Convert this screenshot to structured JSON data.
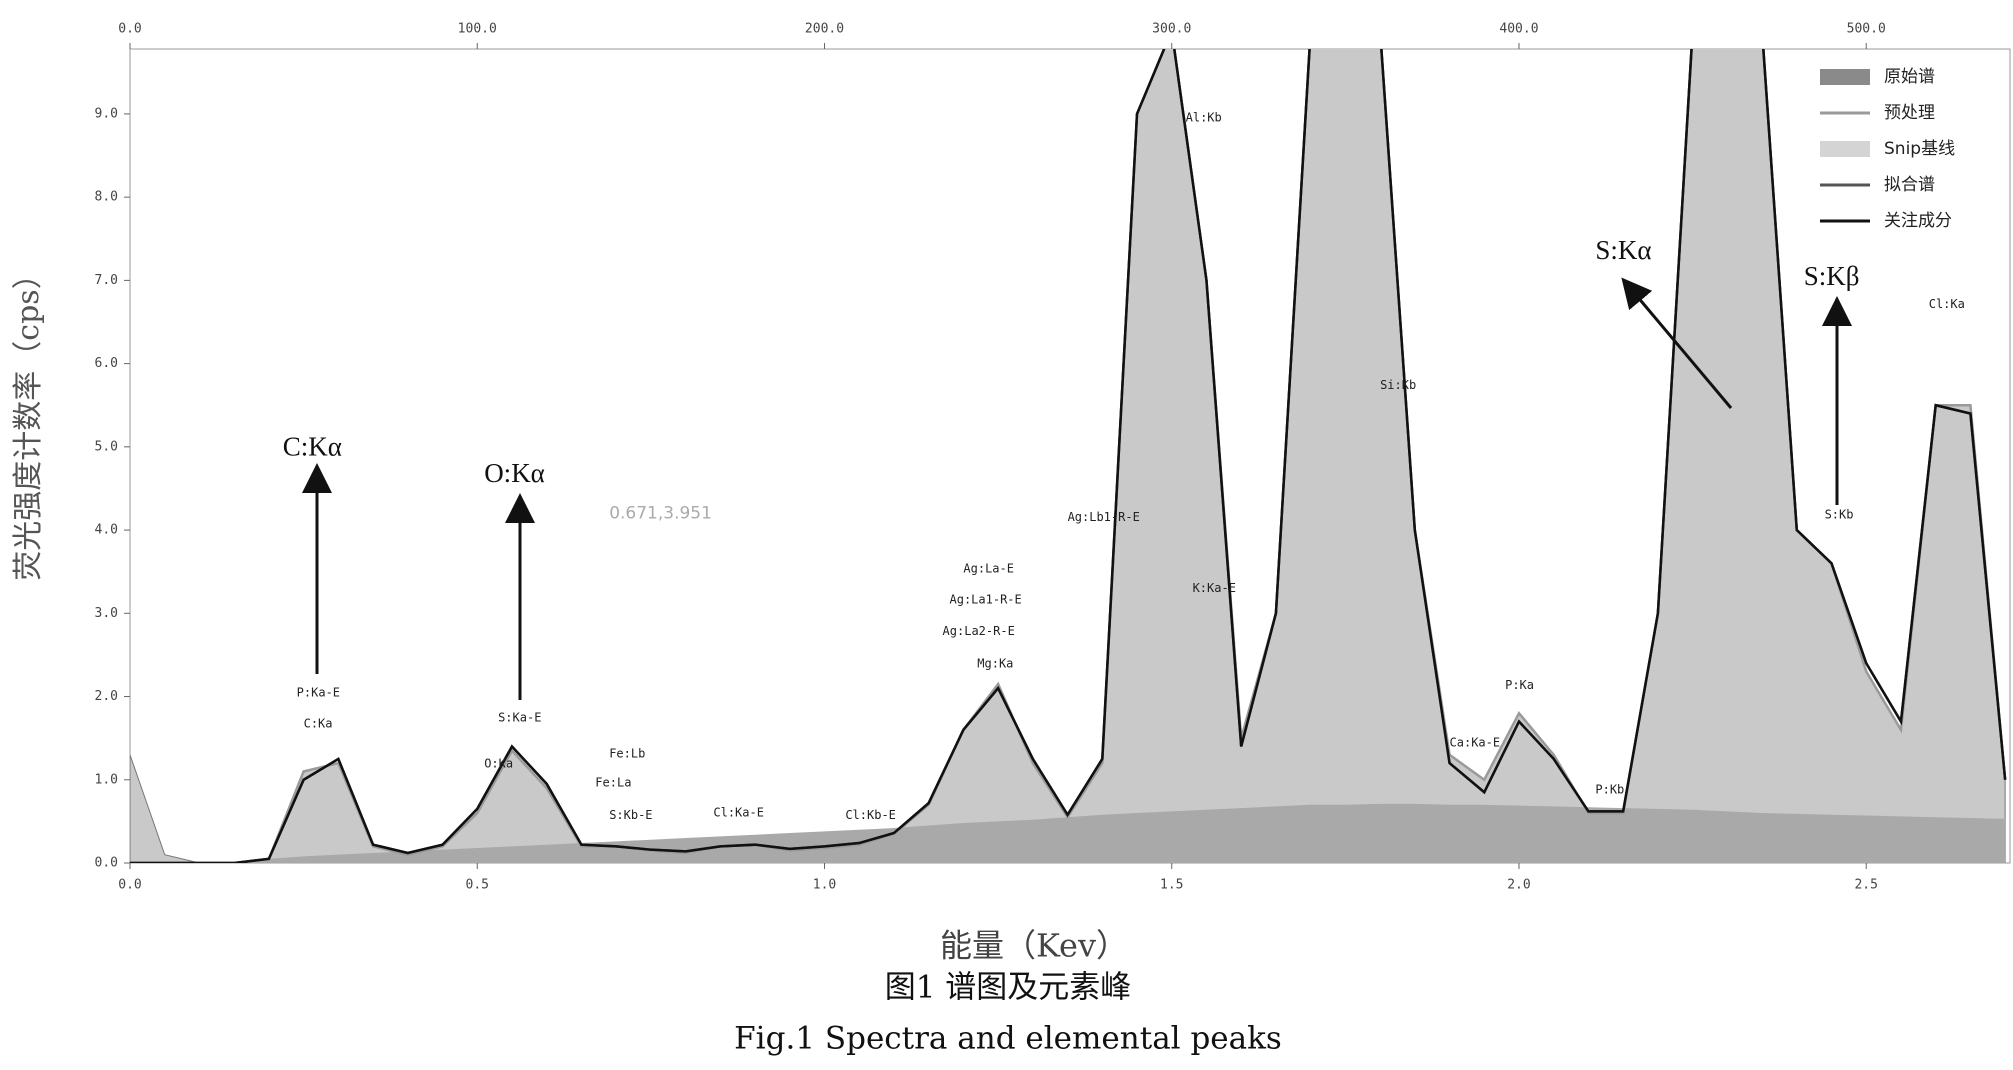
{
  "chart_data": {
    "type": "spectrum",
    "caption_cn": "图1 谱图及元素峰",
    "caption_en": "Fig.1  Spectra and elemental peaks",
    "xlabel": "能量（Kev）",
    "ylabel": "荧光强度计数率（cps）",
    "xlim": [
      0,
      2.707
    ],
    "xticks": [
      {
        "value": 0,
        "label": "0.0"
      },
      {
        "value": 0.5,
        "label": "0.5"
      },
      {
        "value": 1,
        "label": "1.0"
      },
      {
        "value": 1.5,
        "label": "1.5"
      },
      {
        "value": 2,
        "label": "2.0"
      },
      {
        "value": 2.5,
        "label": "2.5"
      }
    ],
    "x2lim": [
      0,
      541.4
    ],
    "x2ticks": [
      {
        "value": 0,
        "label": "0.0"
      },
      {
        "value": 100,
        "label": "100.0"
      },
      {
        "value": 200,
        "label": "200.0"
      },
      {
        "value": 300,
        "label": "300.0"
      },
      {
        "value": 400,
        "label": "400.0"
      },
      {
        "value": 500,
        "label": "500.0"
      }
    ],
    "ylim": [
      0,
      9.78
    ],
    "yticks": [
      {
        "value": 0,
        "label": "0.0"
      },
      {
        "value": 1,
        "label": "1.0"
      },
      {
        "value": 2,
        "label": "2.0"
      },
      {
        "value": 3,
        "label": "3.0"
      },
      {
        "value": 4,
        "label": "4.0"
      },
      {
        "value": 5,
        "label": "5.0"
      },
      {
        "value": 6,
        "label": "6.0"
      },
      {
        "value": 7,
        "label": "7.0"
      },
      {
        "value": 8,
        "label": "8.0"
      },
      {
        "value": 9,
        "label": "9.0"
      }
    ],
    "legend": "top-right",
    "x": [
      0,
      0.05,
      0.1,
      0.15,
      0.2,
      0.25,
      0.3,
      0.35,
      0.4,
      0.45,
      0.5,
      0.55,
      0.6,
      0.65,
      0.7,
      0.75,
      0.8,
      0.85,
      0.9,
      0.95,
      1.0,
      1.05,
      1.1,
      1.15,
      1.2,
      1.25,
      1.3,
      1.35,
      1.4,
      1.45,
      1.5,
      1.55,
      1.6,
      1.65,
      1.7,
      1.75,
      1.8,
      1.85,
      1.9,
      1.95,
      2.0,
      2.05,
      2.1,
      2.15,
      2.2,
      2.25,
      2.3,
      2.35,
      2.4,
      2.45,
      2.5,
      2.55,
      2.6,
      2.65,
      2.7
    ],
    "series": [
      {
        "name": "原始谱",
        "kind": "area",
        "color": "#c9c9c9",
        "legend_color": "#8a8a8a",
        "values": [
          1.3,
          0.1,
          0,
          0,
          0.05,
          1.1,
          1.2,
          0.2,
          0.1,
          0.2,
          0.6,
          1.35,
          0.9,
          0.2,
          0.2,
          0.15,
          0.12,
          0.2,
          0.22,
          0.15,
          0.18,
          0.22,
          0.35,
          0.7,
          1.6,
          2.15,
          1.2,
          0.55,
          1.2,
          9,
          10,
          7,
          1.5,
          3,
          10,
          10,
          10,
          4,
          1.3,
          1.0,
          1.8,
          1.3,
          0.6,
          0.6,
          3,
          10,
          10,
          10,
          4,
          3.6,
          2.3,
          1.6,
          5.5,
          5.5,
          1.0
        ]
      },
      {
        "name": "预处理",
        "kind": "line",
        "color": "#9a9a9a",
        "values": [
          0,
          0,
          0,
          0,
          0.05,
          1.1,
          1.2,
          0.2,
          0.1,
          0.2,
          0.6,
          1.35,
          0.9,
          0.2,
          0.2,
          0.15,
          0.12,
          0.2,
          0.22,
          0.15,
          0.18,
          0.22,
          0.35,
          0.7,
          1.6,
          2.15,
          1.2,
          0.55,
          1.2,
          9,
          10,
          7,
          1.5,
          3,
          10,
          10,
          10,
          4,
          1.3,
          1.0,
          1.8,
          1.3,
          0.6,
          0.6,
          3,
          10,
          10,
          10,
          4,
          3.6,
          2.3,
          1.6,
          5.5,
          5.5,
          1.0
        ]
      },
      {
        "name": "Snip基线",
        "kind": "area",
        "color": "#a9a9a9",
        "legend_color": "#d4d4d4",
        "values": [
          0,
          0,
          0,
          0,
          0.05,
          0.08,
          0.1,
          0.12,
          0.14,
          0.16,
          0.18,
          0.2,
          0.22,
          0.24,
          0.26,
          0.28,
          0.3,
          0.32,
          0.34,
          0.36,
          0.38,
          0.4,
          0.42,
          0.45,
          0.48,
          0.5,
          0.52,
          0.55,
          0.58,
          0.6,
          0.62,
          0.64,
          0.66,
          0.68,
          0.7,
          0.7,
          0.71,
          0.71,
          0.7,
          0.7,
          0.69,
          0.68,
          0.67,
          0.66,
          0.65,
          0.64,
          0.62,
          0.6,
          0.59,
          0.58,
          0.57,
          0.56,
          0.55,
          0.54,
          0.53
        ]
      },
      {
        "name": "拟合谱",
        "kind": "line",
        "color": "#555555",
        "values": [
          0,
          0,
          0,
          0,
          0.05,
          1.0,
          1.25,
          0.22,
          0.12,
          0.22,
          0.65,
          1.4,
          0.95,
          0.22,
          0.2,
          0.16,
          0.14,
          0.2,
          0.22,
          0.17,
          0.2,
          0.24,
          0.36,
          0.72,
          1.6,
          2.1,
          1.25,
          0.58,
          1.25,
          9,
          10,
          7,
          1.4,
          3,
          10,
          10,
          10,
          4,
          1.2,
          0.85,
          1.7,
          1.25,
          0.62,
          0.62,
          3,
          10,
          10,
          10,
          4,
          3.6,
          2.4,
          1.7,
          5.5,
          5.4,
          1.0
        ]
      },
      {
        "name": "关注成分",
        "kind": "line",
        "color": "#111111",
        "values": [
          0,
          0,
          0,
          0,
          0.05,
          1.0,
          1.25,
          0.22,
          0.12,
          0.22,
          0.65,
          1.4,
          0.95,
          0.22,
          0.2,
          0.16,
          0.14,
          0.2,
          0.22,
          0.17,
          0.2,
          0.24,
          0.36,
          0.72,
          1.6,
          2.1,
          1.25,
          0.58,
          1.25,
          9,
          10,
          7,
          1.4,
          3,
          10,
          10,
          10,
          4,
          1.2,
          0.85,
          1.7,
          1.25,
          0.62,
          0.62,
          3,
          10,
          10,
          10,
          4,
          3.6,
          2.4,
          1.7,
          5.5,
          5.4,
          1.0
        ]
      }
    ],
    "peak_labels": [
      {
        "text": "P:Ka-E",
        "x": 0.24,
        "y": 2.04
      },
      {
        "text": "C:Ka",
        "x": 0.25,
        "y": 1.67
      },
      {
        "text": "S:Ka-E",
        "x": 0.53,
        "y": 1.74
      },
      {
        "text": "O:Ka",
        "x": 0.51,
        "y": 1.19
      },
      {
        "text": "Fe:Lb",
        "x": 0.69,
        "y": 1.31
      },
      {
        "text": "Fe:La",
        "x": 0.67,
        "y": 0.96
      },
      {
        "text": "S:Kb-E",
        "x": 0.69,
        "y": 0.57
      },
      {
        "text": "Cl:Ka-E",
        "x": 0.84,
        "y": 0.6
      },
      {
        "text": "Cl:Kb-E",
        "x": 1.03,
        "y": 0.57
      },
      {
        "text": "Ag:La-E",
        "x": 1.2,
        "y": 3.53
      },
      {
        "text": "Ag:La1-R-E",
        "x": 1.18,
        "y": 3.16
      },
      {
        "text": "Ag:La2-R-E",
        "x": 1.17,
        "y": 2.78
      },
      {
        "text": "Mg:Ka",
        "x": 1.22,
        "y": 2.39
      },
      {
        "text": "Ag:Lb1-R-E",
        "x": 1.35,
        "y": 4.15
      },
      {
        "text": "Al:Kb",
        "x": 1.52,
        "y": 8.95
      },
      {
        "text": "K:Ka-E",
        "x": 1.53,
        "y": 3.3
      },
      {
        "text": "Si:Kb",
        "x": 1.8,
        "y": 5.74
      },
      {
        "text": "Ca:Ka-E",
        "x": 1.9,
        "y": 1.44
      },
      {
        "text": "P:Ka",
        "x": 1.98,
        "y": 2.13
      },
      {
        "text": "P:Kb",
        "x": 2.11,
        "y": 0.88
      },
      {
        "text": "S:Kb",
        "x": 2.44,
        "y": 4.18
      },
      {
        "text": "Cl:Ka",
        "x": 2.59,
        "y": 6.71
      }
    ],
    "element_labels": [
      {
        "text": "C:Kα",
        "x": 0.22,
        "y": 4.97
      },
      {
        "text": "O:Kα",
        "x": 0.51,
        "y": 4.65
      },
      {
        "text": "S:Kα",
        "x": 2.11,
        "y": 7.33
      },
      {
        "text": "S:Kβ",
        "x": 2.41,
        "y": 7.02
      }
    ],
    "cursor_readout": {
      "text": "0.671,3.951",
      "x": 0.69,
      "y": 4.2
    }
  }
}
